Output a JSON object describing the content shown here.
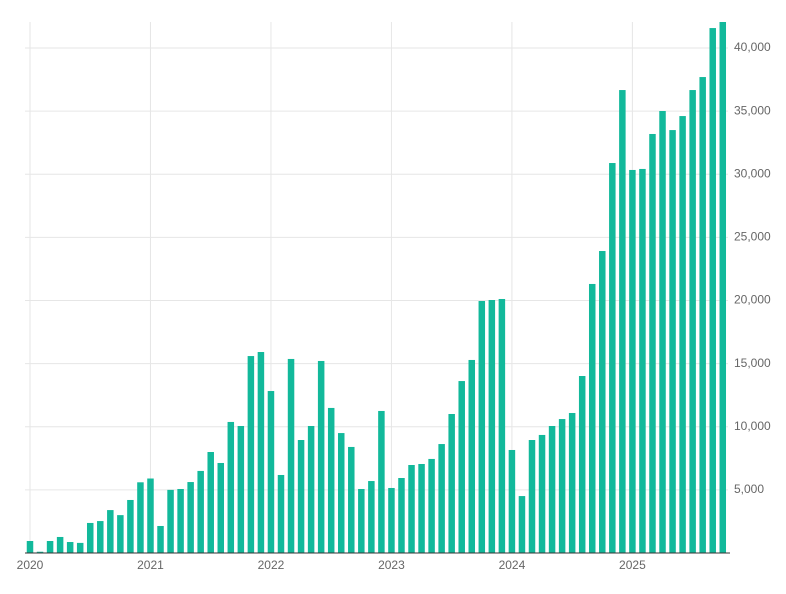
{
  "chart_data": {
    "type": "bar",
    "categories": [
      "2020",
      null,
      null,
      null,
      null,
      null,
      null,
      null,
      null,
      null,
      null,
      null,
      "2021",
      null,
      null,
      null,
      null,
      null,
      null,
      null,
      null,
      null,
      null,
      null,
      "2022",
      null,
      null,
      null,
      null,
      null,
      null,
      null,
      null,
      null,
      null,
      null,
      "2023",
      null,
      null,
      null,
      null,
      null,
      null,
      null,
      null,
      null,
      null,
      null,
      "2024",
      null,
      null,
      null,
      null,
      null,
      null,
      null,
      null,
      null,
      null,
      null,
      "2025",
      null,
      null,
      null,
      null,
      null,
      null,
      null,
      null,
      null
    ],
    "values": [
      950,
      100,
      950,
      1270,
      870,
      800,
      2380,
      2530,
      3400,
      3000,
      4200,
      5600,
      5900,
      2140,
      5000,
      5070,
      5620,
      6500,
      8000,
      7130,
      10380,
      10060,
      15600,
      15920,
      12830,
      6180,
      15370,
      8950,
      10060,
      15210,
      11490,
      9500,
      8400,
      5070,
      5700,
      11250,
      5150,
      5940,
      6970,
      7050,
      7450,
      8630,
      11010,
      13620,
      15290,
      19960,
      20040,
      20120,
      8160,
      4510,
      8950,
      9350,
      10060,
      10610,
      11090,
      14020,
      21310,
      23920,
      30890,
      36670,
      30340,
      30420,
      33190,
      35010,
      33500,
      34610,
      36670,
      37700,
      41580,
      42060
    ],
    "color": "#12b99b",
    "ylim": [
      0,
      42060
    ],
    "yticks": [
      {
        "value": 5000,
        "label": "5,000"
      },
      {
        "value": 10000,
        "label": "10,000"
      },
      {
        "value": 15000,
        "label": "15,000"
      },
      {
        "value": 20000,
        "label": "20,000"
      },
      {
        "value": 25000,
        "label": "25,000"
      },
      {
        "value": 30000,
        "label": "30,000"
      },
      {
        "value": 35000,
        "label": "35,000"
      },
      {
        "value": 40000,
        "label": "40,000"
      }
    ],
    "grid": true
  }
}
